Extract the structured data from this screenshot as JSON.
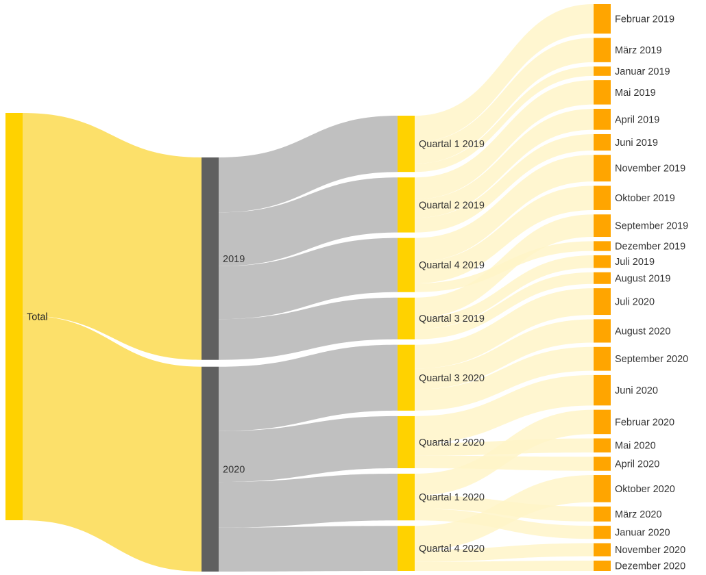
{
  "chart_data": {
    "type": "sankey",
    "colors": {
      "total_node": "#FFD200",
      "total_link": "#FCE06A",
      "year_node": "#606060",
      "year_link": "#C0C0C0",
      "quarter_node": "#FFD200",
      "quarter_link": "#FFF4C8",
      "month_node": "#FFA500"
    },
    "levels": [
      {
        "nodes": [
          {
            "id": "total",
            "label": "Total",
            "value": 1000
          }
        ]
      },
      {
        "nodes": [
          {
            "id": "y2019",
            "label": "2019",
            "value": 497
          },
          {
            "id": "y2020",
            "label": "2020",
            "value": 503
          }
        ]
      },
      {
        "nodes": [
          {
            "id": "q1_2019",
            "label": "Quartal 1 2019",
            "value": 135
          },
          {
            "id": "q2_2019",
            "label": "Quartal 2 2019",
            "value": 132
          },
          {
            "id": "q4_2019",
            "label": "Quartal 4 2019",
            "value": 130
          },
          {
            "id": "q3_2019",
            "label": "Quartal 3 2019",
            "value": 100
          },
          {
            "id": "q3_2020",
            "label": "Quartal 3 2020",
            "value": 158
          },
          {
            "id": "q2_2020",
            "label": "Quartal 2 2020",
            "value": 125
          },
          {
            "id": "q1_2020",
            "label": "Quartal 1 2020",
            "value": 112
          },
          {
            "id": "q4_2020",
            "label": "Quartal 4 2020",
            "value": 108
          }
        ]
      },
      {
        "nodes": [
          {
            "id": "feb2019",
            "label": "Februar 2019",
            "value": 63,
            "parent": "q1_2019"
          },
          {
            "id": "mar2019",
            "label": "März 2019",
            "value": 52,
            "parent": "q1_2019"
          },
          {
            "id": "jan2019",
            "label": "Januar 2019",
            "value": 20,
            "parent": "q1_2019"
          },
          {
            "id": "mai2019",
            "label": "Mai 2019",
            "value": 52,
            "parent": "q2_2019"
          },
          {
            "id": "apr2019",
            "label": "April 2019",
            "value": 45,
            "parent": "q2_2019"
          },
          {
            "id": "jun2019",
            "label": "Juni 2019",
            "value": 35,
            "parent": "q2_2019"
          },
          {
            "id": "nov2019",
            "label": "November 2019",
            "value": 57,
            "parent": "q4_2019"
          },
          {
            "id": "okt2019",
            "label": "Oktober 2019",
            "value": 52,
            "parent": "q4_2019"
          },
          {
            "id": "sep2019",
            "label": "September 2019",
            "value": 48,
            "parent": "q3_2019"
          },
          {
            "id": "dez2019",
            "label": "Dezember 2019",
            "value": 21,
            "parent": "q4_2019"
          },
          {
            "id": "jul2019",
            "label": "Juli 2019",
            "value": 27,
            "parent": "q3_2019"
          },
          {
            "id": "aug2019",
            "label": "August 2019",
            "value": 25,
            "parent": "q3_2019"
          },
          {
            "id": "jul2020",
            "label": "Juli 2020",
            "value": 57,
            "parent": "q3_2020"
          },
          {
            "id": "aug2020",
            "label": "August 2020",
            "value": 50,
            "parent": "q3_2020"
          },
          {
            "id": "sep2020",
            "label": "September 2020",
            "value": 51,
            "parent": "q3_2020"
          },
          {
            "id": "jun2020",
            "label": "Juni 2020",
            "value": 65,
            "parent": "q2_2020"
          },
          {
            "id": "feb2020",
            "label": "Februar 2020",
            "value": 52,
            "parent": "q1_2020"
          },
          {
            "id": "mai2020",
            "label": "Mai 2020",
            "value": 30,
            "parent": "q2_2020"
          },
          {
            "id": "apr2020",
            "label": "April 2020",
            "value": 30,
            "parent": "q2_2020"
          },
          {
            "id": "okt2020",
            "label": "Oktober 2020",
            "value": 58,
            "parent": "q4_2020"
          },
          {
            "id": "mar2020",
            "label": "März 2020",
            "value": 32,
            "parent": "q1_2020"
          },
          {
            "id": "jan2020",
            "label": "Januar 2020",
            "value": 28,
            "parent": "q1_2020"
          },
          {
            "id": "nov2020",
            "label": "November 2020",
            "value": 28,
            "parent": "q4_2020"
          },
          {
            "id": "dez2020",
            "label": "Dezember 2020",
            "value": 22,
            "parent": "q4_2020"
          }
        ]
      }
    ],
    "links": [
      {
        "source": "total",
        "target": "y2019",
        "value": 497
      },
      {
        "source": "total",
        "target": "y2020",
        "value": 503
      },
      {
        "source": "y2019",
        "target": "q1_2019",
        "value": 135
      },
      {
        "source": "y2019",
        "target": "q2_2019",
        "value": 132
      },
      {
        "source": "y2019",
        "target": "q4_2019",
        "value": 130
      },
      {
        "source": "y2019",
        "target": "q3_2019",
        "value": 100
      },
      {
        "source": "y2020",
        "target": "q3_2020",
        "value": 158
      },
      {
        "source": "y2020",
        "target": "q2_2020",
        "value": 125
      },
      {
        "source": "y2020",
        "target": "q1_2020",
        "value": 112
      },
      {
        "source": "y2020",
        "target": "q4_2020",
        "value": 108
      }
    ]
  }
}
